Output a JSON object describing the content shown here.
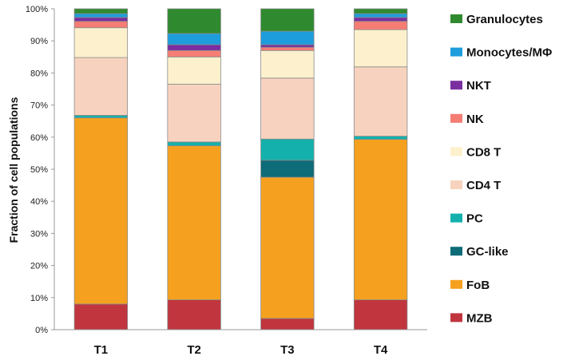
{
  "chart_data": {
    "type": "bar",
    "stacked": true,
    "title": "",
    "xlabel": "",
    "ylabel": "Fraction of cell populations",
    "ylim": [
      0,
      100
    ],
    "yticks": [
      "0%",
      "10%",
      "20%",
      "30%",
      "40%",
      "50%",
      "60%",
      "70%",
      "80%",
      "90%",
      "100%"
    ],
    "categories": [
      "T1",
      "T2",
      "T3",
      "T4"
    ],
    "legend_position": "right",
    "series": [
      {
        "name": "MZB",
        "color": "#c0353e",
        "values": [
          8.0,
          9.3,
          3.5,
          9.3
        ]
      },
      {
        "name": "FoB",
        "color": "#f5a11f",
        "values": [
          58.0,
          48.0,
          44.0,
          50.0
        ]
      },
      {
        "name": "GC-like",
        "color": "#0e6b78",
        "values": [
          0.0,
          0.0,
          5.3,
          0.0
        ]
      },
      {
        "name": "PC",
        "color": "#14b1ac",
        "values": [
          0.8,
          1.2,
          6.6,
          1.0
        ]
      },
      {
        "name": "CD4 T",
        "color": "#f7d3bf",
        "values": [
          18.0,
          18.0,
          19.0,
          21.6
        ]
      },
      {
        "name": "CD8 T",
        "color": "#fdf1cd",
        "values": [
          9.3,
          8.5,
          8.6,
          11.6
        ]
      },
      {
        "name": "NK",
        "color": "#f57d74",
        "values": [
          2.0,
          2.0,
          1.0,
          2.6
        ]
      },
      {
        "name": "NKT",
        "color": "#7a2ea0",
        "values": [
          1.2,
          1.8,
          0.8,
          1.2
        ]
      },
      {
        "name": "Monocytes/MΦ",
        "color": "#1e9ddc",
        "values": [
          1.2,
          3.5,
          4.2,
          1.2
        ]
      },
      {
        "name": "Granulocytes",
        "color": "#2f8a2f",
        "values": [
          1.5,
          7.7,
          7.0,
          1.5
        ]
      }
    ]
  }
}
